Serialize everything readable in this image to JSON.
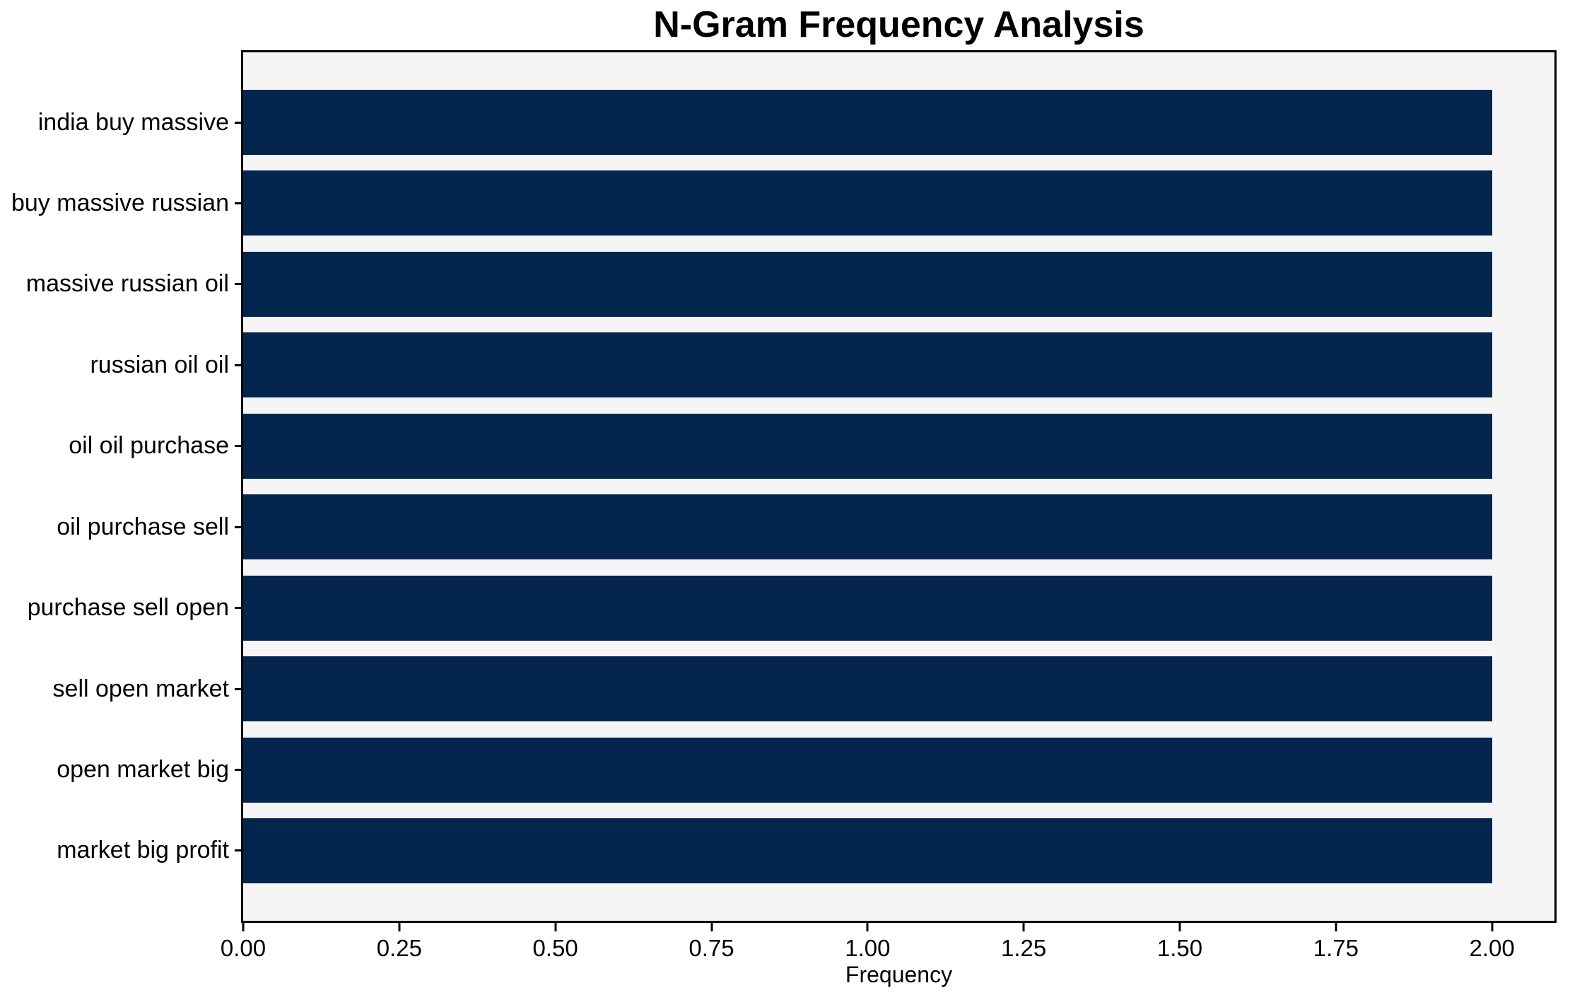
{
  "colors": {
    "bar": "#03254e",
    "plot_background": "#f5f5f5",
    "figure_background": "#ffffff",
    "spine": "#000000",
    "text": "#000000"
  },
  "chart_data": {
    "type": "bar",
    "orientation": "horizontal",
    "title": "N-Gram Frequency Analysis",
    "xlabel": "Frequency",
    "ylabel": "",
    "categories": [
      "india buy massive",
      "buy massive russian",
      "massive russian oil",
      "russian oil oil",
      "oil oil purchase",
      "oil purchase sell",
      "purchase sell open",
      "sell open market",
      "open market big",
      "market big profit"
    ],
    "values": [
      2,
      2,
      2,
      2,
      2,
      2,
      2,
      2,
      2,
      2
    ],
    "xlim": [
      0,
      2.1
    ],
    "xticks": [
      0,
      0.25,
      0.5,
      0.75,
      1,
      1.25,
      1.5,
      1.75,
      2
    ],
    "xtick_labels": [
      "0.00",
      "0.25",
      "0.50",
      "0.75",
      "1.00",
      "1.25",
      "1.50",
      "1.75",
      "2.00"
    ],
    "grid": false,
    "legend": null,
    "bar_height_ratio": 0.8
  }
}
